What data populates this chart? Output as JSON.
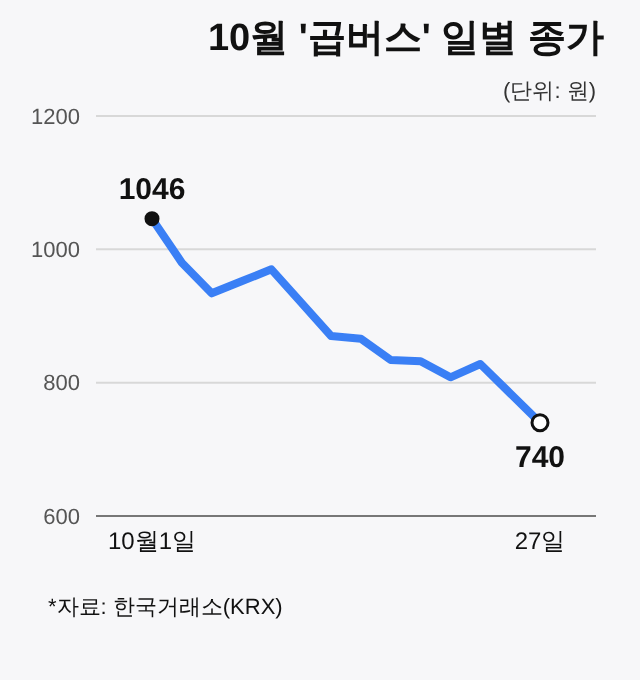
{
  "chart_data": {
    "type": "line",
    "title": "10월 '곱버스' 일별 종가",
    "subtitle": "(단위: 원)",
    "categories": [
      "10월1일",
      null,
      null,
      null,
      null,
      null,
      null,
      null,
      null,
      null,
      null,
      null,
      null,
      "27일"
    ],
    "series": [
      {
        "color": "#3a7ff5",
        "values": [
          1046,
          980,
          934,
          952,
          970,
          920,
          870,
          866,
          834,
          832,
          808,
          828,
          784,
          740
        ],
        "value_labels": [
          "1046",
          null,
          null,
          null,
          null,
          null,
          null,
          null,
          null,
          null,
          null,
          null,
          null,
          "740"
        ]
      }
    ],
    "ylim": [
      600,
      1200
    ],
    "yticks": [
      600,
      800,
      1000,
      1200
    ],
    "grid": "y",
    "marker": "none",
    "line_style": "solid",
    "annotations": [
      "*자료: 한국거래소(KRX)"
    ]
  }
}
